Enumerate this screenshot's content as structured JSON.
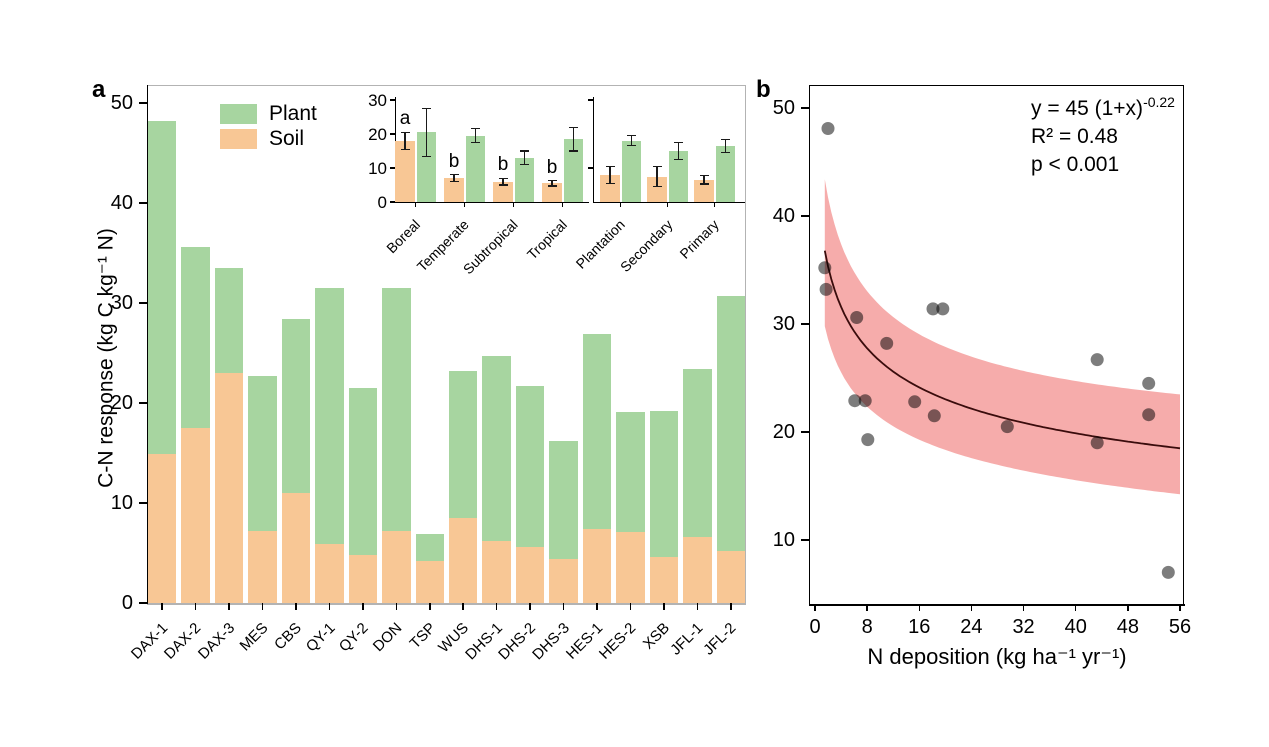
{
  "figure": {
    "panel_a": {
      "label": "a",
      "ylabel": "C-N response (kg C kg⁻¹ N)",
      "legend": {
        "plant": "Plant",
        "soil": "Soil"
      }
    },
    "panel_b": {
      "label": "b",
      "xlabel": "N deposition (kg ha⁻¹ yr⁻¹)",
      "annotation": {
        "fit_base": "y = 45 (1+x)",
        "fit_exp": "-0.22",
        "r2": "R² = 0.48",
        "p": "p < 0.001"
      }
    }
  },
  "chart_data": [
    {
      "id": "panel_a_stacked_bars",
      "type": "bar",
      "stacked": true,
      "title": "",
      "ylabel": "C-N response (kg C kg⁻¹ N)",
      "ylim": [
        0,
        51.7
      ],
      "yticks": [
        0,
        10,
        20,
        30,
        40,
        50
      ],
      "categories": [
        "DAX-1",
        "DAX-2",
        "DAX-3",
        "MES",
        "CBS",
        "QY-1",
        "QY-2",
        "DON",
        "TSP",
        "WUS",
        "DHS-1",
        "DHS-2",
        "DHS-3",
        "HES-1",
        "HES-2",
        "XSB",
        "JFL-1",
        "JFL-2"
      ],
      "series": [
        {
          "name": "Soil",
          "color": "#f8c795",
          "values": [
            14.9,
            17.5,
            23.0,
            7.2,
            11.0,
            5.9,
            4.8,
            7.2,
            4.2,
            8.5,
            6.2,
            5.6,
            4.4,
            7.4,
            7.1,
            4.6,
            6.6,
            5.2
          ]
        },
        {
          "name": "Plant",
          "color": "#a7d5a0",
          "values": [
            33.3,
            18.1,
            10.5,
            15.5,
            17.4,
            25.6,
            16.7,
            24.3,
            2.7,
            14.7,
            18.5,
            16.1,
            11.8,
            19.5,
            12.0,
            14.6,
            16.8,
            25.5
          ]
        }
      ],
      "legend": [
        "Plant",
        "Soil"
      ],
      "legend_position": "top-left-inside"
    },
    {
      "id": "panel_a_inset_grouped_bars",
      "type": "bar",
      "grouped": true,
      "error_bars": true,
      "ylim": [
        0,
        31
      ],
      "yticks": [
        0,
        10,
        20,
        30
      ],
      "right_axis_ticks": [
        10,
        30
      ],
      "colors": {
        "soil": "#f8c795",
        "plant": "#a7d5a0"
      },
      "sub_panels": [
        {
          "name": "climate_zones",
          "groups": [
            {
              "label": "Boreal",
              "soil": 18.0,
              "soil_err": 2.5,
              "plant": 20.5,
              "plant_err": 7.0,
              "letter": "a"
            },
            {
              "label": "Temperate",
              "soil": 7.0,
              "soil_err": 1.0,
              "plant": 19.5,
              "plant_err": 2.0,
              "letter": "b"
            },
            {
              "label": "Subtropical",
              "soil": 6.0,
              "soil_err": 1.0,
              "plant": 13.0,
              "plant_err": 2.0,
              "letter": "b"
            },
            {
              "label": "Tropical",
              "soil": 5.5,
              "soil_err": 0.8,
              "plant": 18.5,
              "plant_err": 3.5,
              "letter": "b"
            }
          ]
        },
        {
          "name": "forest_types",
          "groups": [
            {
              "label": "Plantation",
              "soil": 8.0,
              "soil_err": 2.5,
              "plant": 18.0,
              "plant_err": 1.5,
              "letter": ""
            },
            {
              "label": "Secondary",
              "soil": 7.5,
              "soil_err": 3.0,
              "plant": 15.0,
              "plant_err": 2.5,
              "letter": ""
            },
            {
              "label": "Primary",
              "soil": 6.5,
              "soil_err": 1.2,
              "plant": 16.5,
              "plant_err": 2.0,
              "letter": ""
            }
          ]
        }
      ]
    },
    {
      "id": "panel_b_scatter_fit",
      "type": "scatter",
      "xlabel": "N deposition (kg ha⁻¹ yr⁻¹)",
      "xlim": [
        0,
        56
      ],
      "xticks": [
        0,
        8,
        16,
        24,
        32,
        40,
        48,
        56
      ],
      "ylim": [
        4,
        52
      ],
      "yticks": [
        10,
        20,
        30,
        40,
        50
      ],
      "point_color": "#7d7d7d",
      "points": [
        [
          2.0,
          48.1
        ],
        [
          1.5,
          35.2
        ],
        [
          1.7,
          33.2
        ],
        [
          6.4,
          30.6
        ],
        [
          11.0,
          28.2
        ],
        [
          18.1,
          31.4
        ],
        [
          19.6,
          31.4
        ],
        [
          6.1,
          22.9
        ],
        [
          7.7,
          22.9
        ],
        [
          8.1,
          19.3
        ],
        [
          15.3,
          22.8
        ],
        [
          18.3,
          21.5
        ],
        [
          29.5,
          20.5
        ],
        [
          43.3,
          26.7
        ],
        [
          43.3,
          19.0
        ],
        [
          51.2,
          24.5
        ],
        [
          51.2,
          21.6
        ],
        [
          54.2,
          7.0
        ]
      ],
      "fit": {
        "equation": "y = 45 (1+x)^-0.22",
        "a": 45,
        "b": -0.22,
        "x_start": 1.5,
        "x_end": 56,
        "r_squared": 0.48,
        "p_value": "p < 0.001",
        "curve_color": "#3a0c0c",
        "band_color": "#f6acab",
        "band": {
          "upper_factor_start": 1.18,
          "upper_factor_end": 1.27,
          "lower_factor_start": 0.81,
          "lower_factor_end": 0.77
        }
      }
    }
  ]
}
